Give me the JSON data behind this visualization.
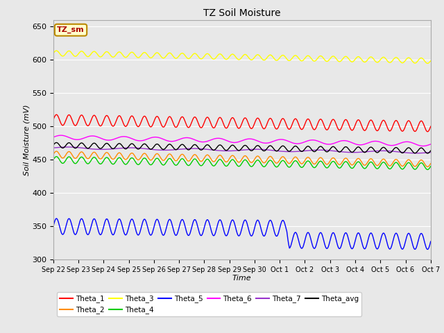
{
  "title": "TZ Soil Moisture",
  "xlabel": "Time",
  "ylabel": "Soil Moisture (mV)",
  "xlim_days": 15,
  "ylim": [
    300,
    660
  ],
  "yticks": [
    300,
    350,
    400,
    450,
    500,
    550,
    600,
    650
  ],
  "label_box_text": "TZ_sm",
  "label_box_color": "#FFFFCC",
  "label_box_border": "#BB8800",
  "label_text_color": "#AA0000",
  "bg_color": "#E8E8E8",
  "plot_bg_color": "#EBEBEB",
  "series_order": [
    "Theta_1",
    "Theta_2",
    "Theta_3",
    "Theta_4",
    "Theta_5",
    "Theta_6",
    "Theta_7",
    "Theta_avg"
  ],
  "series": {
    "Theta_1": {
      "color": "#FF0000",
      "base": 510,
      "amplitude": 8,
      "trend": -0.65,
      "freq": 2.0
    },
    "Theta_2": {
      "color": "#FF8C00",
      "base": 458,
      "amplitude": 5,
      "trend": -0.9,
      "freq": 2.0
    },
    "Theta_3": {
      "color": "#FFFF00",
      "base": 610,
      "amplitude": 4,
      "trend": -0.75,
      "freq": 2.0
    },
    "Theta_4": {
      "color": "#00CC00",
      "base": 450,
      "amplitude": 5,
      "trend": -0.65,
      "freq": 2.0
    },
    "Theta_5": {
      "color": "#0000FF",
      "base": 350,
      "amplitude": 12,
      "trend": -0.3,
      "freq": 2.0,
      "drop_day": 9.3,
      "drop_amount": 18
    },
    "Theta_6": {
      "color": "#FF00FF",
      "base": 484,
      "amplitude": 3,
      "trend": -0.7,
      "freq": 0.8
    },
    "Theta_7": {
      "color": "#9933CC",
      "base": 468,
      "amplitude": 1.5,
      "trend": -0.45,
      "freq": 0.4
    },
    "Theta_avg": {
      "color": "#000000",
      "base": 472,
      "amplitude": 4,
      "trend": -0.55,
      "freq": 2.0
    }
  },
  "n_points": 720,
  "date_labels": [
    "Sep 22",
    "Sep 23",
    "Sep 24",
    "Sep 25",
    "Sep 26",
    "Sep 27",
    "Sep 28",
    "Sep 29",
    "Sep 30",
    "Oct 1",
    "Oct 2",
    "Oct 3",
    "Oct 4",
    "Oct 5",
    "Oct 6",
    "Oct 7"
  ],
  "legend_row1": [
    [
      "Theta_1",
      "#FF0000"
    ],
    [
      "Theta_2",
      "#FF8C00"
    ],
    [
      "Theta_3",
      "#FFFF00"
    ],
    [
      "Theta_4",
      "#00CC00"
    ],
    [
      "Theta_5",
      "#0000FF"
    ],
    [
      "Theta_6",
      "#FF00FF"
    ]
  ],
  "legend_row2": [
    [
      "Theta_7",
      "#9933CC"
    ],
    [
      "Theta_avg",
      "#000000"
    ]
  ]
}
